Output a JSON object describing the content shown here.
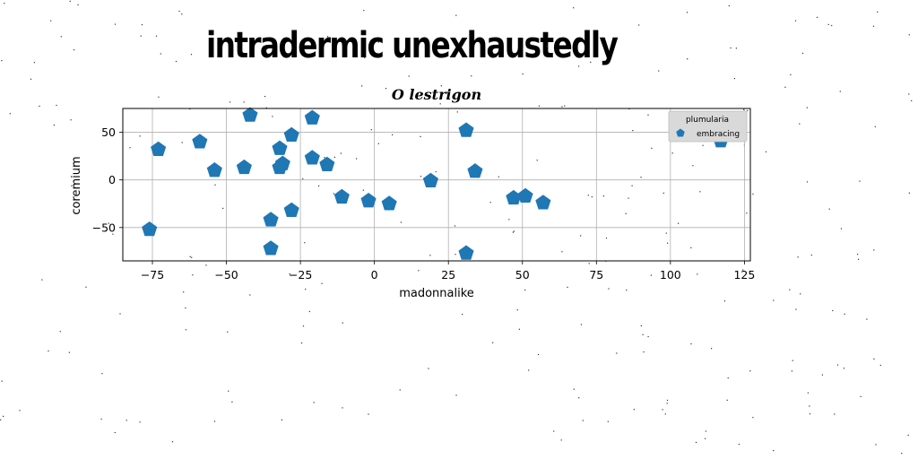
{
  "header": {
    "title": "intradermic unexhaustedly"
  },
  "chart_data": {
    "type": "scatter",
    "title": "O lestrigon",
    "xlabel": "madonnalike",
    "ylabel": "coremium",
    "xlim": [
      -85,
      127
    ],
    "ylim": [
      -85,
      75
    ],
    "xticks": [
      -75,
      -50,
      -25,
      0,
      25,
      50,
      75,
      100,
      125
    ],
    "yticks": [
      -50,
      0,
      50
    ],
    "grid": true,
    "legend": {
      "title": "plumularia",
      "placement": "top-right"
    },
    "marker": "pentagon",
    "series": [
      {
        "name": "embracing",
        "color": "#1f77b4",
        "points": [
          [
            -76,
            -52
          ],
          [
            -73,
            32
          ],
          [
            -59,
            40
          ],
          [
            -54,
            10
          ],
          [
            -44,
            13
          ],
          [
            -42,
            68
          ],
          [
            -35,
            -42
          ],
          [
            -35,
            -72
          ],
          [
            -32,
            33
          ],
          [
            -32,
            13
          ],
          [
            -31,
            17
          ],
          [
            -28,
            47
          ],
          [
            -28,
            -32
          ],
          [
            -21,
            23
          ],
          [
            -21,
            65
          ],
          [
            -16,
            16
          ],
          [
            -11,
            -18
          ],
          [
            -2,
            -22
          ],
          [
            5,
            -25
          ],
          [
            19,
            -1
          ],
          [
            31,
            52
          ],
          [
            31,
            -77
          ],
          [
            34,
            9
          ],
          [
            47,
            -19
          ],
          [
            51,
            -17
          ],
          [
            57,
            -24
          ],
          [
            117,
            41
          ]
        ]
      }
    ]
  }
}
